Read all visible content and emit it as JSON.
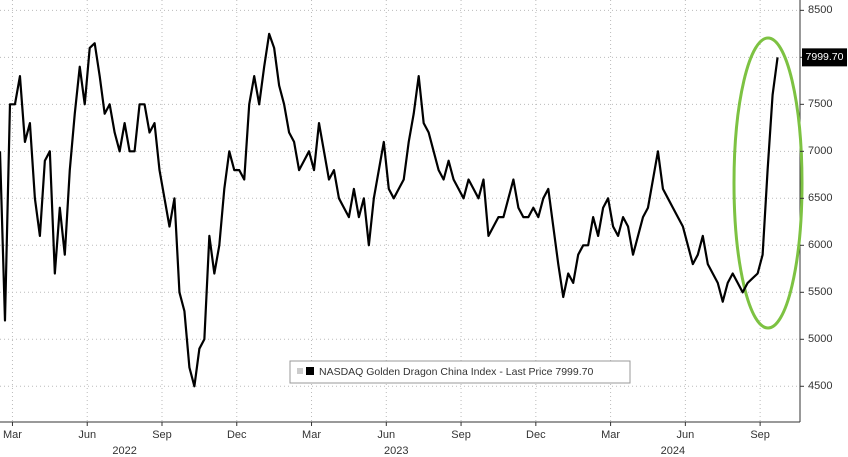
{
  "chart_data": {
    "type": "line",
    "x": [
      2.5,
      2.7,
      2.9,
      3.1,
      3.3,
      3.5,
      3.7,
      3.9,
      4.1,
      4.3,
      4.5,
      4.7,
      4.9,
      5.1,
      5.3,
      5.5,
      5.7,
      5.9,
      6.1,
      6.3,
      6.5,
      6.7,
      6.9,
      7.1,
      7.3,
      7.5,
      7.7,
      7.9,
      8.1,
      8.3,
      8.5,
      8.7,
      8.9,
      9.1,
      9.3,
      9.5,
      9.7,
      9.9,
      10.1,
      10.3,
      10.5,
      10.7,
      10.9,
      11.1,
      11.3,
      11.5,
      11.7,
      11.9,
      12.1,
      12.3,
      12.5,
      12.7,
      12.9,
      13.1,
      13.3,
      13.5,
      13.7,
      13.9,
      14.1,
      14.3,
      14.5,
      14.7,
      14.9,
      15.1,
      15.3,
      15.5,
      15.7,
      15.9,
      16.1,
      16.3,
      16.5,
      16.7,
      16.9,
      17.1,
      17.3,
      17.5,
      17.7,
      17.9,
      18.1,
      18.3,
      18.5,
      18.7,
      18.9,
      19.1,
      19.3,
      19.5,
      19.7,
      19.9,
      20.1,
      20.3,
      20.5,
      20.7,
      20.9,
      21.1,
      21.3,
      21.5,
      21.7,
      21.9,
      22.1,
      22.3,
      22.5,
      22.7,
      22.9,
      23.1,
      23.3,
      23.5,
      23.7,
      23.9,
      24.1,
      24.3,
      24.5,
      24.7,
      24.9,
      25.1,
      25.3,
      25.5,
      25.7,
      25.9,
      26.1,
      26.3,
      26.5,
      26.7,
      26.9,
      27.1,
      27.3,
      27.5,
      27.7,
      27.9,
      28.1,
      28.3,
      28.5,
      28.7,
      28.9,
      29.1,
      29.3,
      29.5,
      29.7,
      29.9,
      30.1,
      30.3,
      30.5,
      30.7,
      30.9,
      31.1,
      31.3,
      31.5,
      31.7,
      31.9,
      32.1,
      32.3,
      32.5,
      32.7,
      32.9,
      33.1,
      33.3,
      33.5,
      33.7
    ],
    "series": [
      {
        "name": "NASDAQ Golden Dragon China Index - Last Price 7999.70",
        "color": "#000000",
        "values": [
          7000,
          5200,
          7500,
          7500,
          7800,
          7100,
          7300,
          6500,
          6100,
          6900,
          7000,
          5700,
          6400,
          5900,
          6800,
          7400,
          7900,
          7500,
          8100,
          8150,
          7800,
          7400,
          7500,
          7200,
          7000,
          7300,
          7000,
          7000,
          7500,
          7500,
          7200,
          7300,
          6800,
          6500,
          6200,
          6500,
          5500,
          5300,
          4700,
          4500,
          4900,
          5000,
          6100,
          5700,
          6000,
          6600,
          7000,
          6800,
          6800,
          6700,
          7500,
          7800,
          7500,
          7900,
          8250,
          8100,
          7700,
          7500,
          7200,
          7100,
          6800,
          6900,
          7000,
          6800,
          7300,
          7000,
          6700,
          6800,
          6500,
          6400,
          6300,
          6600,
          6300,
          6500,
          6000,
          6500,
          6800,
          7100,
          6600,
          6500,
          6600,
          6700,
          7100,
          7400,
          7800,
          7300,
          7200,
          7000,
          6800,
          6700,
          6900,
          6700,
          6600,
          6500,
          6700,
          6600,
          6500,
          6700,
          6100,
          6200,
          6300,
          6300,
          6500,
          6700,
          6400,
          6300,
          6300,
          6400,
          6300,
          6500,
          6600,
          6200,
          5800,
          5450,
          5700,
          5600,
          5900,
          6000,
          6000,
          6300,
          6100,
          6400,
          6500,
          6200,
          6100,
          6300,
          6200,
          5900,
          6100,
          6300,
          6400,
          6700,
          7000,
          6600,
          6500,
          6400,
          6300,
          6200,
          6000,
          5800,
          5900,
          6100,
          5800,
          5700,
          5600,
          5400,
          5600,
          5700,
          5600,
          5500,
          5600,
          5650,
          5700,
          5900,
          6800,
          7600,
          7999.7
        ]
      }
    ],
    "last_price_label": "7999.70",
    "xlim": [
      2.5,
      34.6
    ],
    "xticks": [
      {
        "value": 3,
        "label": "Mar"
      },
      {
        "value": 6,
        "label": "Jun"
      },
      {
        "value": 9,
        "label": "Sep"
      },
      {
        "value": 12,
        "label": "Dec"
      },
      {
        "value": 15,
        "label": "Mar"
      },
      {
        "value": 18,
        "label": "Jun"
      },
      {
        "value": 21,
        "label": "Sep"
      },
      {
        "value": 24,
        "label": "Dec"
      },
      {
        "value": 27,
        "label": "Mar"
      },
      {
        "value": 30,
        "label": "Jun"
      },
      {
        "value": 33,
        "label": "Sep"
      }
    ],
    "year_ticks": [
      {
        "value": 7.5,
        "label": "2022"
      },
      {
        "value": 18.4,
        "label": "2023"
      },
      {
        "value": 29.5,
        "label": "2024"
      }
    ],
    "ylim": [
      4120,
      8610
    ],
    "yticks": [
      4500,
      5000,
      5500,
      6000,
      6500,
      7000,
      7500,
      8000,
      8500
    ],
    "grid": true
  }
}
